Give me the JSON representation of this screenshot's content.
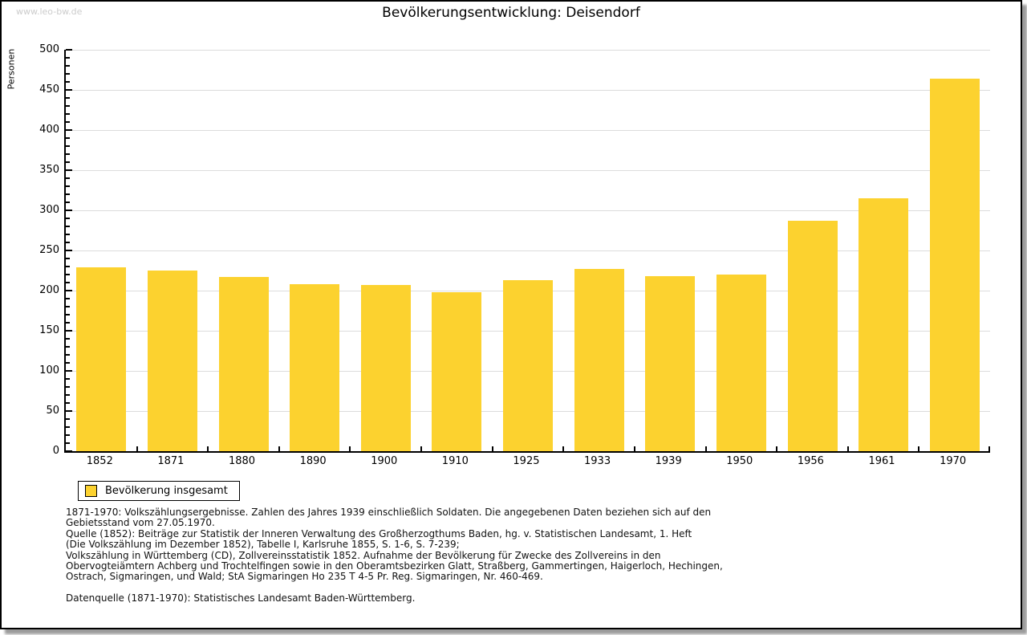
{
  "watermark": "www.leo-bw.de",
  "colors": {
    "bar": "#FCD22F",
    "grid": "#DCDCDC",
    "axis": "#000000",
    "watermark_gray": "#CCCCCC"
  },
  "chart_data": {
    "type": "bar",
    "title": "Bevölkerungsentwicklung: Deisendorf",
    "xlabel": "",
    "ylabel": "Personen",
    "ylim": [
      0,
      500
    ],
    "y_tick_step": 50,
    "y_minor_tick_step": 10,
    "grid": true,
    "legend_position": "bottom-left",
    "categories": [
      "1852",
      "1871",
      "1880",
      "1890",
      "1900",
      "1910",
      "1925",
      "1933",
      "1939",
      "1950",
      "1956",
      "1961",
      "1970"
    ],
    "series": [
      {
        "name": "Bevölkerung insgesamt",
        "values": [
          229,
          225,
          217,
          208,
          207,
          198,
          213,
          227,
          218,
          220,
          287,
          315,
          464
        ]
      }
    ],
    "bar_color": "#FCD22F"
  },
  "footer": {
    "lines": [
      "1871-1970: Volkszählungsergebnisse. Zahlen des Jahres 1939 einschließlich Soldaten. Die angegebenen Daten beziehen sich auf den",
      "Gebietsstand vom 27.05.1970.",
      "Quelle (1852): Beiträge zur Statistik der Inneren Verwaltung des Großherzogthums Baden, hg. v. Statistischen Landesamt, 1. Heft",
      "(Die Volkszählung im Dezember 1852), Tabelle I, Karlsruhe 1855, S. 1-6, S. 7-239;",
      "Volkszählung in Württemberg (CD), Zollvereinsstatistik 1852. Aufnahme der Bevölkerung für Zwecke des Zollvereins in den",
      "Obervogteiämtern Achberg und Trochtelfingen sowie in den Oberamtsbezirken Glatt, Straßberg, Gammertingen, Haigerloch, Hechingen,",
      "Ostrach, Sigmaringen, und Wald; StA Sigmaringen Ho 235 T 4-5 Pr. Reg. Sigmaringen, Nr. 460-469."
    ],
    "source_line": "Datenquelle (1871-1970): Statistisches Landesamt Baden-Württemberg."
  }
}
